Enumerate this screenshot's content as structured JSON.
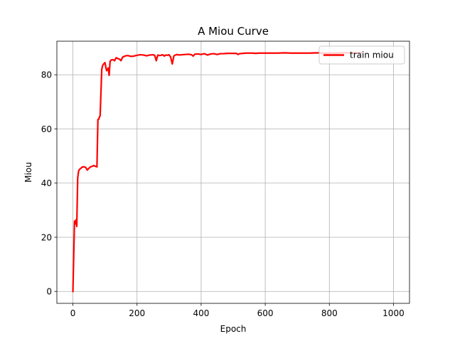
{
  "chart_data": {
    "type": "line",
    "title": "A Miou Curve",
    "xlabel": "Epoch",
    "ylabel": "Miou",
    "xlim": [
      -50,
      1050
    ],
    "ylim": [
      -4.4,
      92.4
    ],
    "xticks": [
      0,
      200,
      400,
      600,
      800,
      1000
    ],
    "yticks": [
      0,
      20,
      40,
      60,
      80
    ],
    "xtick_labels": [
      "0",
      "200",
      "400",
      "600",
      "800",
      "1000"
    ],
    "ytick_labels": [
      "0",
      "20",
      "40",
      "60",
      "80"
    ],
    "grid": true,
    "legend_position": "top-right",
    "series": [
      {
        "name": "train miou",
        "color": "#ff0000",
        "x": [
          0,
          5,
          8,
          10,
          12,
          15,
          18,
          20,
          25,
          30,
          35,
          40,
          45,
          50,
          55,
          60,
          65,
          70,
          75,
          78,
          80,
          85,
          90,
          93,
          96,
          100,
          105,
          108,
          110,
          113,
          116,
          118,
          120,
          125,
          130,
          135,
          140,
          145,
          150,
          155,
          160,
          165,
          170,
          175,
          180,
          190,
          200,
          210,
          220,
          230,
          240,
          250,
          255,
          260,
          265,
          270,
          275,
          280,
          285,
          290,
          295,
          300,
          305,
          310,
          315,
          320,
          325,
          330,
          340,
          350,
          360,
          370,
          375,
          380,
          390,
          400,
          410,
          420,
          430,
          440,
          450,
          460,
          470,
          480,
          500,
          510,
          515,
          520,
          530,
          540,
          550,
          560,
          570,
          580,
          600,
          620,
          640,
          660,
          680,
          700,
          720,
          740,
          760,
          780,
          800,
          820,
          840,
          860,
          880,
          900
        ],
        "values": [
          0,
          26,
          25,
          26.5,
          24,
          42,
          44.5,
          45,
          45.5,
          46,
          46,
          45.8,
          44.8,
          45.5,
          46,
          46.2,
          46.5,
          46.2,
          46,
          63.5,
          63.5,
          65,
          82,
          83.5,
          84,
          84.5,
          81.5,
          82,
          82.5,
          79.8,
          85,
          85.2,
          85.5,
          85.6,
          85.2,
          86.3,
          86,
          85.8,
          85.2,
          86.5,
          86.8,
          87,
          87.1,
          87,
          86.8,
          86.9,
          87.2,
          87.4,
          87.3,
          87,
          87.3,
          87.4,
          87.2,
          85.2,
          87.3,
          87.1,
          87.2,
          87.4,
          86.9,
          87.3,
          87.2,
          87.4,
          86.5,
          84,
          87,
          87.3,
          87.5,
          87.3,
          87.4,
          87.5,
          87.6,
          87.4,
          86.9,
          87.6,
          87.7,
          87.5,
          87.8,
          87.3,
          87.7,
          87.8,
          87.5,
          87.8,
          87.8,
          87.9,
          87.9,
          87.9,
          87.5,
          87.8,
          87.9,
          88,
          88,
          88,
          87.9,
          88,
          88,
          88,
          88,
          88.1,
          88,
          88,
          88,
          88,
          88.1,
          88,
          88,
          88,
          88.1,
          88.1,
          88.1,
          88.1
        ]
      }
    ]
  }
}
